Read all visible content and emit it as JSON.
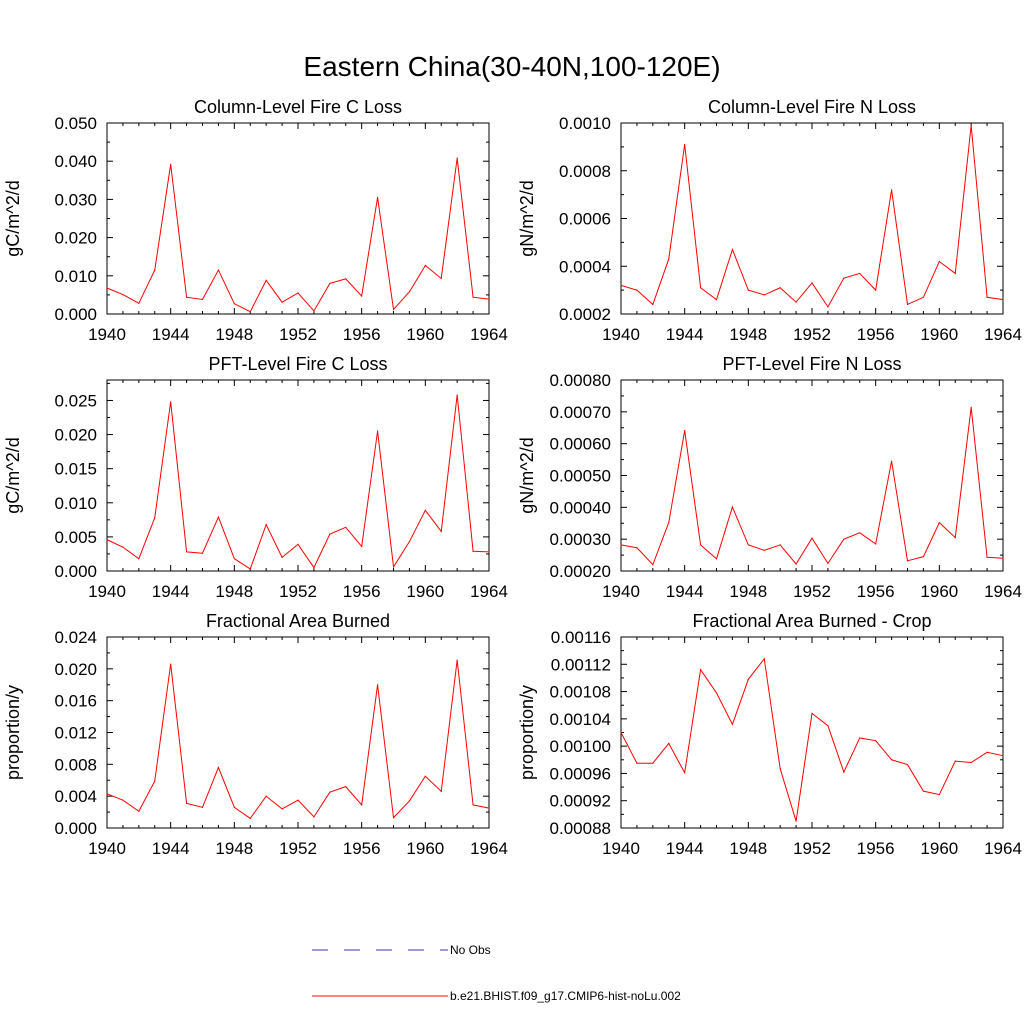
{
  "figure": {
    "title": "Eastern China(30-40N,100-120E)"
  },
  "legend": {
    "items": [
      {
        "label": "No Obs",
        "color": "#3a3aa8",
        "dashed": true
      },
      {
        "label": "b.e21.BHIST.f09_g17.CMIP6-hist-noLu.002",
        "color": "#ff0000",
        "dashed": false
      }
    ]
  },
  "chart_data": [
    {
      "type": "line",
      "title": "Column-Level Fire C Loss",
      "ylabel": "gC/m^2/d",
      "xlim": [
        1940,
        1964
      ],
      "xticks": [
        "1940",
        "1944",
        "1948",
        "1952",
        "1956",
        "1960",
        "1964"
      ],
      "ylim": [
        0.0,
        0.05
      ],
      "yticks": [
        "0.000",
        "0.010",
        "0.020",
        "0.030",
        "0.040",
        "0.050"
      ],
      "x": [
        1940,
        1941,
        1942,
        1943,
        1944,
        1945,
        1946,
        1947,
        1948,
        1949,
        1950,
        1951,
        1952,
        1953,
        1954,
        1955,
        1956,
        1957,
        1958,
        1959,
        1960,
        1961,
        1962,
        1963,
        1964
      ],
      "series": [
        {
          "name": "b.e21.BHIST.f09_g17.CMIP6-hist-noLu.002",
          "color": "#ff0000",
          "values": [
            0.0068,
            0.0051,
            0.0028,
            0.0115,
            0.0392,
            0.0044,
            0.0038,
            0.0115,
            0.0027,
            0.0006,
            0.0088,
            0.0031,
            0.0055,
            0.0008,
            0.008,
            0.0092,
            0.0047,
            0.0305,
            0.0012,
            0.0058,
            0.0127,
            0.0093,
            0.0408,
            0.0044,
            0.0039
          ]
        }
      ]
    },
    {
      "type": "line",
      "title": "Column-Level Fire N Loss",
      "ylabel": "gN/m^2/d",
      "xlim": [
        1940,
        1964
      ],
      "xticks": [
        "1940",
        "1944",
        "1948",
        "1952",
        "1956",
        "1960",
        "1964"
      ],
      "ylim": [
        0.0002,
        0.001
      ],
      "yticks": [
        "0.0002",
        "0.0004",
        "0.0006",
        "0.0008",
        "0.0010"
      ],
      "x": [
        1940,
        1941,
        1942,
        1943,
        1944,
        1945,
        1946,
        1947,
        1948,
        1949,
        1950,
        1951,
        1952,
        1953,
        1954,
        1955,
        1956,
        1957,
        1958,
        1959,
        1960,
        1961,
        1962,
        1963,
        1964
      ],
      "series": [
        {
          "name": "b.e21.BHIST.f09_g17.CMIP6-hist-noLu.002",
          "color": "#ff0000",
          "values": [
            0.00032,
            0.0003,
            0.00024,
            0.00043,
            0.00091,
            0.00031,
            0.00026,
            0.00047,
            0.0003,
            0.00028,
            0.00031,
            0.00025,
            0.00033,
            0.00023,
            0.00035,
            0.00037,
            0.0003,
            0.00072,
            0.00024,
            0.00027,
            0.00042,
            0.00037,
            0.00099,
            0.00027,
            0.00026
          ]
        }
      ]
    },
    {
      "type": "line",
      "title": "PFT-Level Fire C Loss",
      "ylabel": "gC/m^2/d",
      "xlim": [
        1940,
        1964
      ],
      "xticks": [
        "1940",
        "1944",
        "1948",
        "1952",
        "1956",
        "1960",
        "1964"
      ],
      "ylim": [
        0.0,
        0.028
      ],
      "yticks": [
        "0.000",
        "0.005",
        "0.010",
        "0.015",
        "0.020",
        "0.025"
      ],
      "x": [
        1940,
        1941,
        1942,
        1943,
        1944,
        1945,
        1946,
        1947,
        1948,
        1949,
        1950,
        1951,
        1952,
        1953,
        1954,
        1955,
        1956,
        1957,
        1958,
        1959,
        1960,
        1961,
        1962,
        1963,
        1964
      ],
      "series": [
        {
          "name": "b.e21.BHIST.f09_g17.CMIP6-hist-noLu.002",
          "color": "#ff0000",
          "values": [
            0.0046,
            0.0035,
            0.0018,
            0.0078,
            0.0248,
            0.0028,
            0.0026,
            0.0079,
            0.0018,
            0.0003,
            0.0068,
            0.002,
            0.0039,
            0.0005,
            0.0054,
            0.0064,
            0.0036,
            0.0205,
            0.0006,
            0.0043,
            0.0089,
            0.0058,
            0.0258,
            0.0029,
            0.0028
          ]
        }
      ]
    },
    {
      "type": "line",
      "title": "PFT-Level Fire N Loss",
      "ylabel": "gN/m^2/d",
      "xlim": [
        1940,
        1964
      ],
      "xticks": [
        "1940",
        "1944",
        "1948",
        "1952",
        "1956",
        "1960",
        "1964"
      ],
      "ylim": [
        0.0002,
        0.0008
      ],
      "yticks": [
        "0.00020",
        "0.00030",
        "0.00040",
        "0.00050",
        "0.00060",
        "0.00070",
        "0.00080"
      ],
      "x": [
        1940,
        1941,
        1942,
        1943,
        1944,
        1945,
        1946,
        1947,
        1948,
        1949,
        1950,
        1951,
        1952,
        1953,
        1954,
        1955,
        1956,
        1957,
        1958,
        1959,
        1960,
        1961,
        1962,
        1963,
        1964
      ],
      "series": [
        {
          "name": "b.e21.BHIST.f09_g17.CMIP6-hist-noLu.002",
          "color": "#ff0000",
          "values": [
            0.000282,
            0.000273,
            0.00022,
            0.000352,
            0.000641,
            0.000282,
            0.000238,
            0.000401,
            0.000282,
            0.000265,
            0.000282,
            0.000222,
            0.000303,
            0.000224,
            0.0003,
            0.00032,
            0.000285,
            0.000545,
            0.000232,
            0.000245,
            0.000352,
            0.000305,
            0.000714,
            0.000243,
            0.00024
          ]
        }
      ]
    },
    {
      "type": "line",
      "title": "Fractional Area Burned",
      "ylabel": "proportion/y",
      "xlim": [
        1940,
        1964
      ],
      "xticks": [
        "1940",
        "1944",
        "1948",
        "1952",
        "1956",
        "1960",
        "1964"
      ],
      "ylim": [
        0.0,
        0.024
      ],
      "yticks": [
        "0.000",
        "0.004",
        "0.008",
        "0.012",
        "0.016",
        "0.020",
        "0.024"
      ],
      "x": [
        1940,
        1941,
        1942,
        1943,
        1944,
        1945,
        1946,
        1947,
        1948,
        1949,
        1950,
        1951,
        1952,
        1953,
        1954,
        1955,
        1956,
        1957,
        1958,
        1959,
        1960,
        1961,
        1962,
        1963,
        1964
      ],
      "series": [
        {
          "name": "b.e21.BHIST.f09_g17.CMIP6-hist-noLu.002",
          "color": "#ff0000",
          "values": [
            0.0043,
            0.0035,
            0.0021,
            0.0059,
            0.0206,
            0.0031,
            0.0026,
            0.0076,
            0.0026,
            0.0012,
            0.004,
            0.0024,
            0.0035,
            0.0014,
            0.0045,
            0.0052,
            0.0029,
            0.018,
            0.0013,
            0.0034,
            0.0065,
            0.0046,
            0.0211,
            0.0029,
            0.0025
          ]
        }
      ]
    },
    {
      "type": "line",
      "title": "Fractional Area Burned - Crop",
      "ylabel": "proportion/y",
      "xlim": [
        1940,
        1964
      ],
      "xticks": [
        "1940",
        "1944",
        "1948",
        "1952",
        "1956",
        "1960",
        "1964"
      ],
      "ylim": [
        0.00088,
        0.00116
      ],
      "yticks": [
        "0.00088",
        "0.00092",
        "0.00096",
        "0.00100",
        "0.00104",
        "0.00108",
        "0.00112",
        "0.00116"
      ],
      "x": [
        1940,
        1941,
        1942,
        1943,
        1944,
        1945,
        1946,
        1947,
        1948,
        1949,
        1950,
        1951,
        1952,
        1953,
        1954,
        1955,
        1956,
        1957,
        1958,
        1959,
        1960,
        1961,
        1962,
        1963,
        1964
      ],
      "series": [
        {
          "name": "b.e21.BHIST.f09_g17.CMIP6-hist-noLu.002",
          "color": "#ff0000",
          "values": [
            0.00102,
            0.000975,
            0.000975,
            0.001004,
            0.000961,
            0.001112,
            0.001078,
            0.001032,
            0.001098,
            0.001128,
            0.000967,
            0.00089,
            0.001048,
            0.00103,
            0.000962,
            0.001012,
            0.001008,
            0.00098,
            0.000973,
            0.000934,
            0.000929,
            0.000978,
            0.000976,
            0.000991,
            0.000986
          ]
        }
      ]
    }
  ]
}
